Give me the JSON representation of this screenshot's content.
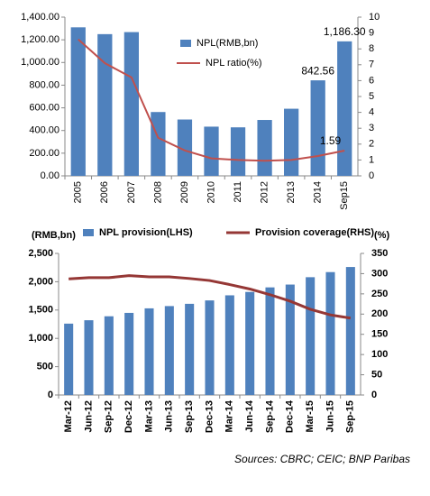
{
  "chart_data": [
    {
      "type": "bar",
      "categories": [
        "2005",
        "2006",
        "2007",
        "2008",
        "2009",
        "2010",
        "2011",
        "2012",
        "2013",
        "2014",
        "Sep15"
      ],
      "series": [
        {
          "name": "NPL(RMB,bn)",
          "type": "bar",
          "axis": "y",
          "color": "#4f81bd",
          "values": [
            1310,
            1250,
            1268,
            563,
            497,
            434,
            428,
            493,
            592,
            842.56,
            1186.3
          ],
          "value_labels": [
            null,
            null,
            null,
            null,
            null,
            null,
            null,
            null,
            null,
            "842.56",
            "1,186.30"
          ]
        },
        {
          "name": "NPL ratio(%)",
          "type": "line",
          "axis": "y2",
          "color": "#c0504d",
          "values": [
            8.6,
            7.1,
            6.2,
            2.4,
            1.6,
            1.1,
            1.0,
            0.95,
            1.0,
            1.25,
            1.59
          ],
          "value_labels": [
            null,
            null,
            null,
            null,
            null,
            null,
            null,
            null,
            null,
            null,
            "1.59"
          ]
        }
      ],
      "ylim": [
        0,
        1400
      ],
      "yticks": [
        {
          "value": 0,
          "label": "0.00"
        },
        {
          "value": 200,
          "label": "200.00"
        },
        {
          "value": 400,
          "label": "400.00"
        },
        {
          "value": 600,
          "label": "600.00"
        },
        {
          "value": 800,
          "label": "800.00"
        },
        {
          "value": 1000,
          "label": "1,000.00"
        },
        {
          "value": 1200,
          "label": "1,200.00"
        },
        {
          "value": 1400,
          "label": "1,400.00"
        }
      ],
      "y2lim": [
        0,
        10
      ],
      "y2ticks": [
        0,
        1,
        2,
        3,
        4,
        5,
        6,
        7,
        8,
        9,
        10
      ],
      "legend": "inside-top"
    },
    {
      "type": "bar",
      "y_label": "(RMB,bn)",
      "y2_label": "(%)",
      "categories": [
        "Mar-12",
        "Jun-12",
        "Sep-12",
        "Dec-12",
        "Mar-13",
        "Jun-13",
        "Sep-13",
        "Dec-13",
        "Mar-14",
        "Jun-14",
        "Sep-14",
        "Dec-14",
        "Mar-15",
        "Jun-15",
        "Sep-15"
      ],
      "series": [
        {
          "name": "NPL provision(LHS)",
          "type": "bar",
          "axis": "y",
          "color": "#4f81bd",
          "values": [
            1260,
            1320,
            1390,
            1450,
            1530,
            1570,
            1610,
            1670,
            1760,
            1820,
            1900,
            1950,
            2080,
            2170,
            2260
          ]
        },
        {
          "name": "Provision coverage(RHS)",
          "type": "line",
          "axis": "y2",
          "color": "#953735",
          "values": [
            287,
            290,
            290,
            295,
            292,
            292,
            288,
            283,
            273,
            262,
            248,
            232,
            212,
            198,
            190
          ]
        }
      ],
      "ylim": [
        0,
        2500
      ],
      "yticks": [
        0,
        500,
        {
          "value": 1000,
          "label": "1,000"
        },
        {
          "value": 1500,
          "label": "1,500"
        },
        {
          "value": 2000,
          "label": "2,000"
        },
        {
          "value": 2500,
          "label": "2,500"
        }
      ],
      "y2lim": [
        0,
        350
      ],
      "y2ticks": [
        0,
        50,
        100,
        150,
        200,
        250,
        300,
        350
      ],
      "legend": "top"
    }
  ],
  "source": "Sources: CBRC;  CEIC; BNP Paribas"
}
